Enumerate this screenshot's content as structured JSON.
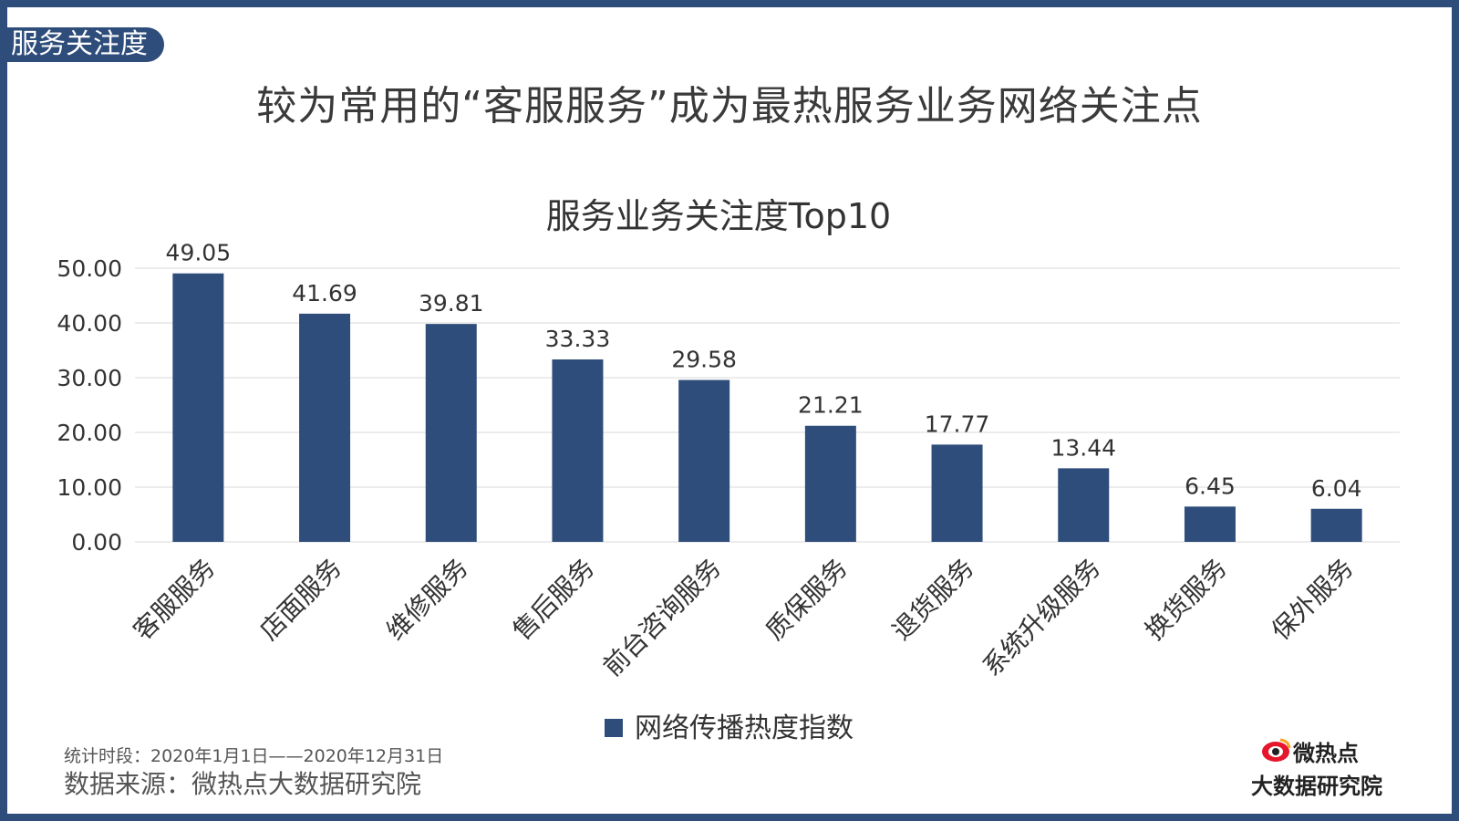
{
  "page": {
    "section_tab": "服务关注度",
    "headline": "较为常用的“客服服务”成为最热服务业务网络关注点",
    "footer": {
      "period": "统计时段：2020年1月1日——2020年12月31日",
      "source": "数据来源：微热点大数据研究院"
    },
    "logo": {
      "name": "微热点",
      "subtitle": "大数据研究院",
      "icon": "weibo-eye-icon"
    }
  },
  "colors": {
    "accent": "#2e4d7b",
    "bar": "#2e4d7b",
    "grid": "#d9d9d9",
    "logo_red": "#e6162d"
  },
  "chart_data": {
    "type": "bar",
    "title": "服务业务关注度Top10",
    "categories": [
      "客服服务",
      "店面服务",
      "维修服务",
      "售后服务",
      "前台咨询服务",
      "质保服务",
      "退货服务",
      "系统升级服务",
      "换货服务",
      "保外服务"
    ],
    "series": [
      {
        "name": "网络传播热度指数",
        "values": [
          49.05,
          41.69,
          39.81,
          33.33,
          29.58,
          21.21,
          17.77,
          13.44,
          6.45,
          6.04
        ],
        "labels": [
          "49.05",
          "41.69",
          "39.81",
          "33.33",
          "29.58",
          "21.21",
          "17.77",
          "13.44",
          "6.45",
          "6.04"
        ]
      }
    ],
    "yticks": [
      "0.00",
      "10.00",
      "20.00",
      "30.00",
      "40.00",
      "50.00"
    ],
    "ylim": [
      0,
      50
    ],
    "xlabel": "",
    "ylabel": "",
    "grid": true,
    "legend": "bottom"
  }
}
